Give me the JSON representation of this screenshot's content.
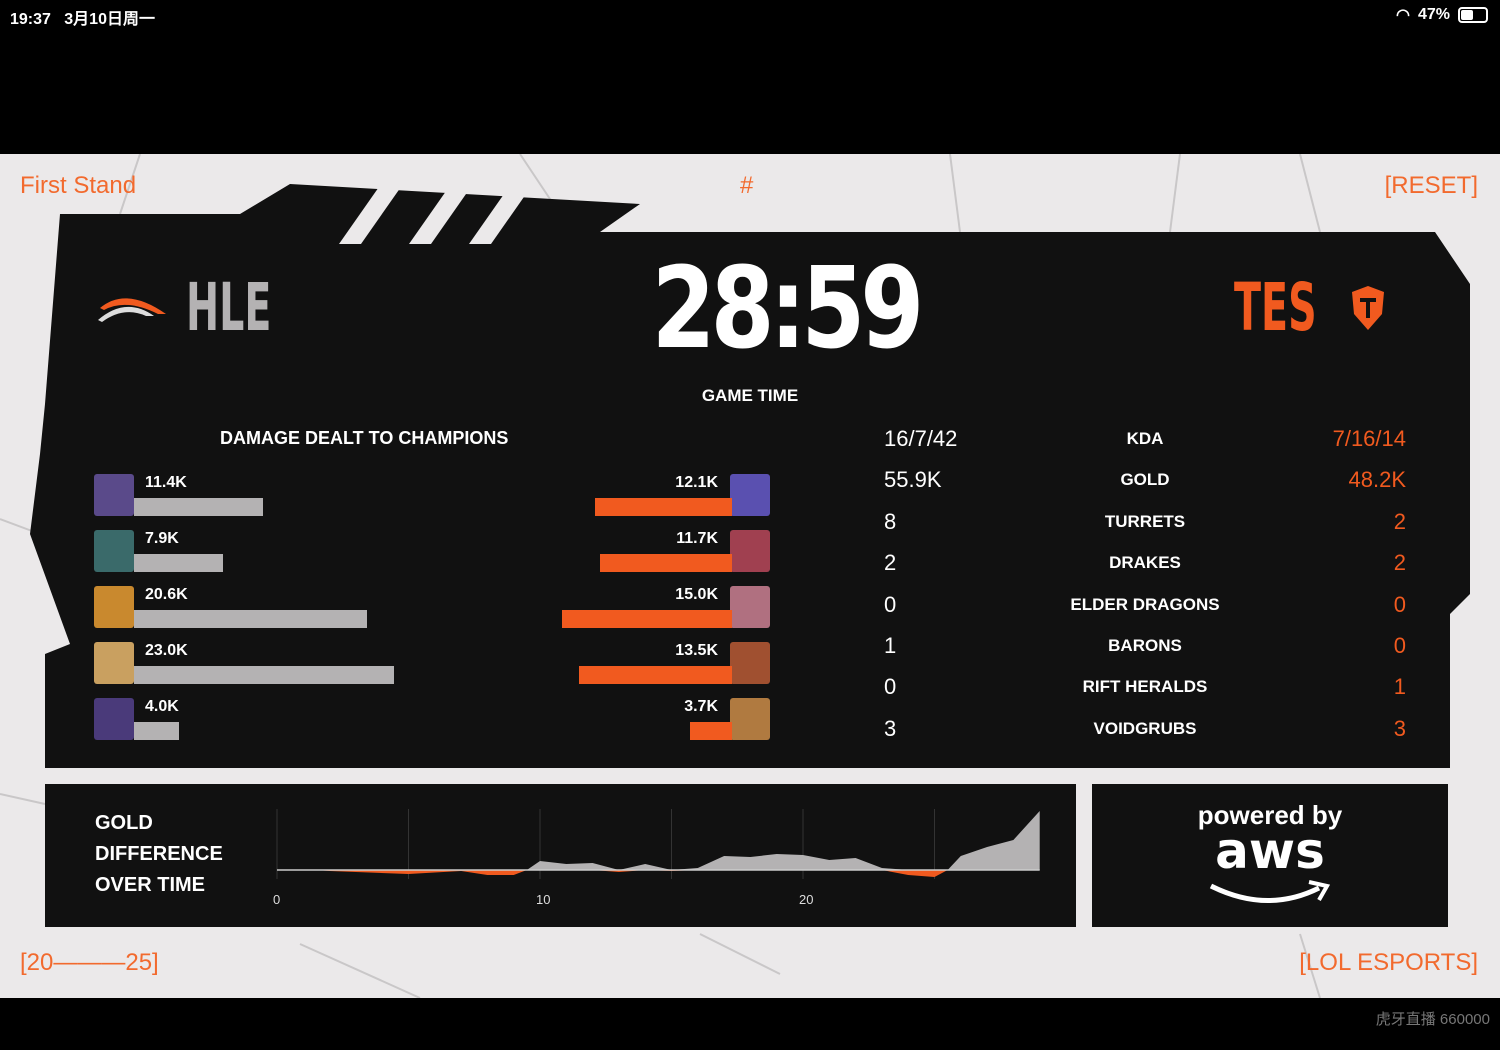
{
  "status_bar": {
    "time": "19:37",
    "date": "3月10日周一",
    "battery": "47%",
    "battery_level": 0.47
  },
  "corners": {
    "top_left": "First Stand",
    "top_center": "#",
    "top_right": "[RESET]",
    "bottom_left": "[20———25]",
    "bottom_right": "[LOL ESPORTS]"
  },
  "teams": {
    "left": {
      "name": "HLE",
      "logo_text": "Hanwha Life Esports",
      "color": "#b4b2b3"
    },
    "right": {
      "name": "TES",
      "color": "#f15a1f"
    }
  },
  "game_time": {
    "value": "28:59",
    "label": "GAME TIME"
  },
  "damage": {
    "title": "DAMAGE DEALT TO CHAMPIONS",
    "max": 23.0,
    "left": [
      {
        "label": "11.4K",
        "value": 11.4
      },
      {
        "label": "7.9K",
        "value": 7.9
      },
      {
        "label": "20.6K",
        "value": 20.6
      },
      {
        "label": "23.0K",
        "value": 23.0
      },
      {
        "label": "4.0K",
        "value": 4.0
      }
    ],
    "right": [
      {
        "label": "12.1K",
        "value": 12.1
      },
      {
        "label": "11.7K",
        "value": 11.7
      },
      {
        "label": "15.0K",
        "value": 15.0
      },
      {
        "label": "13.5K",
        "value": 13.5
      },
      {
        "label": "3.7K",
        "value": 3.7
      }
    ]
  },
  "stats": [
    {
      "name": "KDA",
      "left": "16/7/42",
      "right": "7/16/14"
    },
    {
      "name": "GOLD",
      "left": "55.9K",
      "right": "48.2K"
    },
    {
      "name": "TURRETS",
      "left": "8",
      "right": "2"
    },
    {
      "name": "DRAKES",
      "left": "2",
      "right": "2"
    },
    {
      "name": "ELDER DRAGONS",
      "left": "0",
      "right": "0"
    },
    {
      "name": "BARONS",
      "left": "1",
      "right": "0"
    },
    {
      "name": "RIFT HERALDS",
      "left": "0",
      "right": "1"
    },
    {
      "name": "VOIDGRUBS",
      "left": "3",
      "right": "3"
    }
  ],
  "gold_chart": {
    "title_lines": [
      "GOLD",
      "DIFFERENCE",
      "OVER TIME"
    ]
  },
  "chart_data": {
    "type": "area",
    "title": "GOLD DIFFERENCE OVER TIME",
    "xlim": [
      0,
      29
    ],
    "x_ticks": [
      "0",
      "10",
      "20"
    ],
    "grid": "vertical",
    "x": [
      0,
      1.5,
      2,
      5,
      7,
      8,
      9,
      9.5,
      10,
      11,
      12,
      13,
      14,
      15,
      16,
      17,
      18,
      19,
      20,
      21,
      22,
      23,
      24,
      25,
      25.5,
      26,
      27,
      28,
      29
    ],
    "y": [
      0,
      0,
      -1,
      -4,
      -1,
      -5,
      -5,
      0,
      9,
      6,
      7,
      -2,
      6,
      -1,
      2,
      14,
      13,
      16,
      15,
      10,
      12,
      2,
      -5,
      -7,
      0,
      14,
      23,
      30,
      59
    ],
    "positive_color": "#b4b2b3",
    "negative_color": "#f15a1f"
  },
  "sponsor": {
    "line1": "powered by",
    "line2": "aws"
  },
  "watermark": "虎牙直播 660000"
}
